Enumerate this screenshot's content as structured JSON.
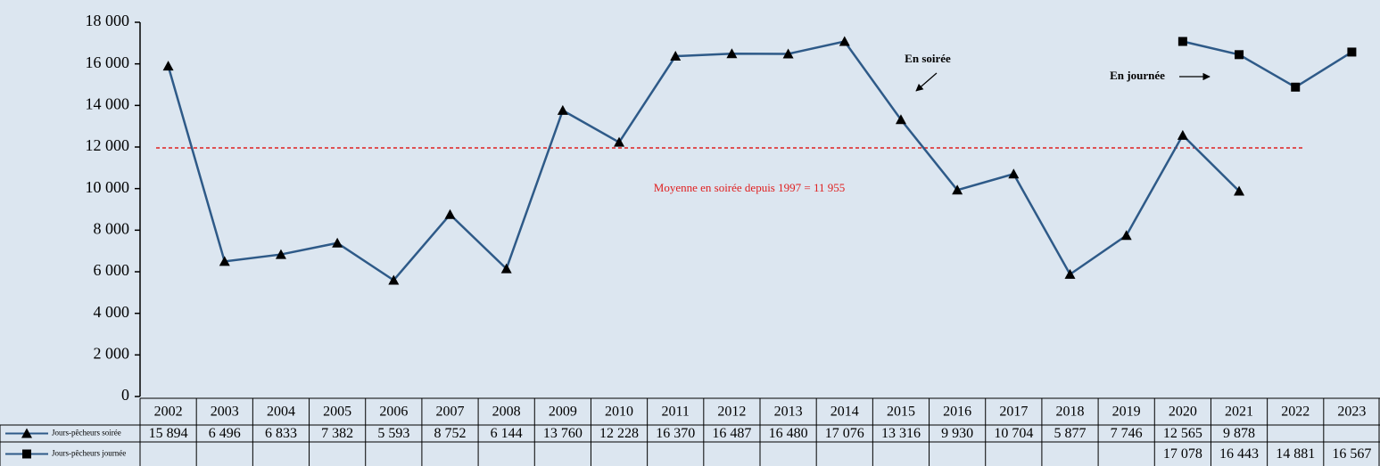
{
  "chart_data": {
    "type": "line",
    "categories": [
      "2002",
      "2003",
      "2004",
      "2005",
      "2006",
      "2007",
      "2008",
      "2009",
      "2010",
      "2011",
      "2012",
      "2013",
      "2014",
      "2015",
      "2016",
      "2017",
      "2018",
      "2019",
      "2020",
      "2021",
      "2022",
      "2023"
    ],
    "series": [
      {
        "name": "Jours-pêcheurs soirée",
        "color": "#2e5a88",
        "marker": "triangle",
        "values": [
          15894,
          6496,
          6833,
          7382,
          5593,
          8752,
          6144,
          13760,
          12228,
          16370,
          16487,
          16480,
          17076,
          13316,
          9930,
          10704,
          5877,
          7746,
          12565,
          9878,
          null,
          null
        ],
        "value_labels": [
          "15 894",
          "6 496",
          "6 833",
          "7 382",
          "5 593",
          "8 752",
          "6 144",
          "13 760",
          "12 228",
          "16 370",
          "16 487",
          "16 480",
          "17 076",
          "13 316",
          "9 930",
          "10 704",
          "5 877",
          "7 746",
          "12 565",
          "9 878",
          null,
          null
        ]
      },
      {
        "name": "Jours-pêcheurs journée",
        "color": "#2e5a88",
        "marker": "square",
        "values": [
          null,
          null,
          null,
          null,
          null,
          null,
          null,
          null,
          null,
          null,
          null,
          null,
          null,
          null,
          null,
          null,
          null,
          null,
          17078,
          16443,
          14881,
          16567
        ],
        "value_labels": [
          null,
          null,
          null,
          null,
          null,
          null,
          null,
          null,
          null,
          null,
          null,
          null,
          null,
          null,
          null,
          null,
          null,
          null,
          "17 078",
          "16 443",
          "14 881",
          "16 567"
        ]
      }
    ],
    "ylim": [
      0,
      18000
    ],
    "yticks": [
      0,
      {
        "value": 2000,
        "label": "2 000"
      },
      {
        "value": 4000,
        "label": "4 000"
      },
      {
        "value": 6000,
        "label": "6 000"
      },
      {
        "value": 8000,
        "label": "8 000"
      },
      {
        "value": 10000,
        "label": "10 000"
      },
      {
        "value": 12000,
        "label": "12 000"
      },
      {
        "value": 14000,
        "label": "14 000"
      },
      {
        "value": 16000,
        "label": "16 000"
      },
      {
        "value": 18000,
        "label": "18 000"
      }
    ],
    "reference_line": {
      "value": 11955,
      "label": "Moyenne en soirée  depuis 1997 = 11 955",
      "color": "#e02020"
    },
    "annotations": [
      "En soirée",
      "En journée"
    ]
  }
}
